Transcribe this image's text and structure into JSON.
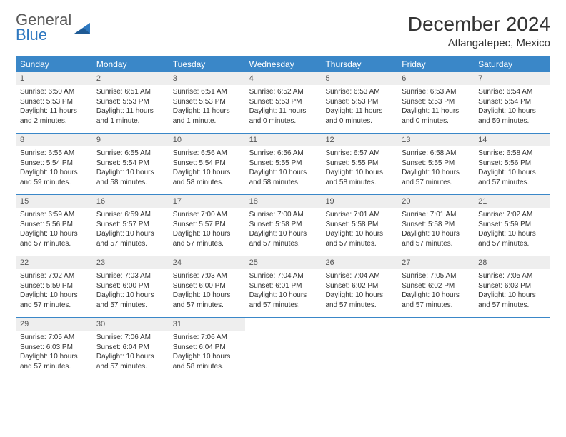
{
  "logo": {
    "line1": "General",
    "line2": "Blue"
  },
  "title": {
    "month": "December 2024",
    "location": "Atlangatepec, Mexico"
  },
  "colors": {
    "header_bg": "#3a87c8",
    "header_text": "#ffffff",
    "daynum_bg": "#eeeeee",
    "daynum_text": "#555555",
    "body_text": "#333333",
    "rule": "#3a87c8",
    "logo_gray": "#5a5a5a",
    "logo_blue": "#2e78c0",
    "page_bg": "#ffffff"
  },
  "day_names": [
    "Sunday",
    "Monday",
    "Tuesday",
    "Wednesday",
    "Thursday",
    "Friday",
    "Saturday"
  ],
  "weeks": [
    [
      {
        "num": "1",
        "sunrise": "Sunrise: 6:50 AM",
        "sunset": "Sunset: 5:53 PM",
        "daylight": "Daylight: 11 hours and 2 minutes."
      },
      {
        "num": "2",
        "sunrise": "Sunrise: 6:51 AM",
        "sunset": "Sunset: 5:53 PM",
        "daylight": "Daylight: 11 hours and 1 minute."
      },
      {
        "num": "3",
        "sunrise": "Sunrise: 6:51 AM",
        "sunset": "Sunset: 5:53 PM",
        "daylight": "Daylight: 11 hours and 1 minute."
      },
      {
        "num": "4",
        "sunrise": "Sunrise: 6:52 AM",
        "sunset": "Sunset: 5:53 PM",
        "daylight": "Daylight: 11 hours and 0 minutes."
      },
      {
        "num": "5",
        "sunrise": "Sunrise: 6:53 AM",
        "sunset": "Sunset: 5:53 PM",
        "daylight": "Daylight: 11 hours and 0 minutes."
      },
      {
        "num": "6",
        "sunrise": "Sunrise: 6:53 AM",
        "sunset": "Sunset: 5:53 PM",
        "daylight": "Daylight: 11 hours and 0 minutes."
      },
      {
        "num": "7",
        "sunrise": "Sunrise: 6:54 AM",
        "sunset": "Sunset: 5:54 PM",
        "daylight": "Daylight: 10 hours and 59 minutes."
      }
    ],
    [
      {
        "num": "8",
        "sunrise": "Sunrise: 6:55 AM",
        "sunset": "Sunset: 5:54 PM",
        "daylight": "Daylight: 10 hours and 59 minutes."
      },
      {
        "num": "9",
        "sunrise": "Sunrise: 6:55 AM",
        "sunset": "Sunset: 5:54 PM",
        "daylight": "Daylight: 10 hours and 58 minutes."
      },
      {
        "num": "10",
        "sunrise": "Sunrise: 6:56 AM",
        "sunset": "Sunset: 5:54 PM",
        "daylight": "Daylight: 10 hours and 58 minutes."
      },
      {
        "num": "11",
        "sunrise": "Sunrise: 6:56 AM",
        "sunset": "Sunset: 5:55 PM",
        "daylight": "Daylight: 10 hours and 58 minutes."
      },
      {
        "num": "12",
        "sunrise": "Sunrise: 6:57 AM",
        "sunset": "Sunset: 5:55 PM",
        "daylight": "Daylight: 10 hours and 58 minutes."
      },
      {
        "num": "13",
        "sunrise": "Sunrise: 6:58 AM",
        "sunset": "Sunset: 5:55 PM",
        "daylight": "Daylight: 10 hours and 57 minutes."
      },
      {
        "num": "14",
        "sunrise": "Sunrise: 6:58 AM",
        "sunset": "Sunset: 5:56 PM",
        "daylight": "Daylight: 10 hours and 57 minutes."
      }
    ],
    [
      {
        "num": "15",
        "sunrise": "Sunrise: 6:59 AM",
        "sunset": "Sunset: 5:56 PM",
        "daylight": "Daylight: 10 hours and 57 minutes."
      },
      {
        "num": "16",
        "sunrise": "Sunrise: 6:59 AM",
        "sunset": "Sunset: 5:57 PM",
        "daylight": "Daylight: 10 hours and 57 minutes."
      },
      {
        "num": "17",
        "sunrise": "Sunrise: 7:00 AM",
        "sunset": "Sunset: 5:57 PM",
        "daylight": "Daylight: 10 hours and 57 minutes."
      },
      {
        "num": "18",
        "sunrise": "Sunrise: 7:00 AM",
        "sunset": "Sunset: 5:58 PM",
        "daylight": "Daylight: 10 hours and 57 minutes."
      },
      {
        "num": "19",
        "sunrise": "Sunrise: 7:01 AM",
        "sunset": "Sunset: 5:58 PM",
        "daylight": "Daylight: 10 hours and 57 minutes."
      },
      {
        "num": "20",
        "sunrise": "Sunrise: 7:01 AM",
        "sunset": "Sunset: 5:58 PM",
        "daylight": "Daylight: 10 hours and 57 minutes."
      },
      {
        "num": "21",
        "sunrise": "Sunrise: 7:02 AM",
        "sunset": "Sunset: 5:59 PM",
        "daylight": "Daylight: 10 hours and 57 minutes."
      }
    ],
    [
      {
        "num": "22",
        "sunrise": "Sunrise: 7:02 AM",
        "sunset": "Sunset: 5:59 PM",
        "daylight": "Daylight: 10 hours and 57 minutes."
      },
      {
        "num": "23",
        "sunrise": "Sunrise: 7:03 AM",
        "sunset": "Sunset: 6:00 PM",
        "daylight": "Daylight: 10 hours and 57 minutes."
      },
      {
        "num": "24",
        "sunrise": "Sunrise: 7:03 AM",
        "sunset": "Sunset: 6:00 PM",
        "daylight": "Daylight: 10 hours and 57 minutes."
      },
      {
        "num": "25",
        "sunrise": "Sunrise: 7:04 AM",
        "sunset": "Sunset: 6:01 PM",
        "daylight": "Daylight: 10 hours and 57 minutes."
      },
      {
        "num": "26",
        "sunrise": "Sunrise: 7:04 AM",
        "sunset": "Sunset: 6:02 PM",
        "daylight": "Daylight: 10 hours and 57 minutes."
      },
      {
        "num": "27",
        "sunrise": "Sunrise: 7:05 AM",
        "sunset": "Sunset: 6:02 PM",
        "daylight": "Daylight: 10 hours and 57 minutes."
      },
      {
        "num": "28",
        "sunrise": "Sunrise: 7:05 AM",
        "sunset": "Sunset: 6:03 PM",
        "daylight": "Daylight: 10 hours and 57 minutes."
      }
    ],
    [
      {
        "num": "29",
        "sunrise": "Sunrise: 7:05 AM",
        "sunset": "Sunset: 6:03 PM",
        "daylight": "Daylight: 10 hours and 57 minutes."
      },
      {
        "num": "30",
        "sunrise": "Sunrise: 7:06 AM",
        "sunset": "Sunset: 6:04 PM",
        "daylight": "Daylight: 10 hours and 57 minutes."
      },
      {
        "num": "31",
        "sunrise": "Sunrise: 7:06 AM",
        "sunset": "Sunset: 6:04 PM",
        "daylight": "Daylight: 10 hours and 58 minutes."
      },
      {
        "empty": true
      },
      {
        "empty": true
      },
      {
        "empty": true
      },
      {
        "empty": true
      }
    ]
  ]
}
